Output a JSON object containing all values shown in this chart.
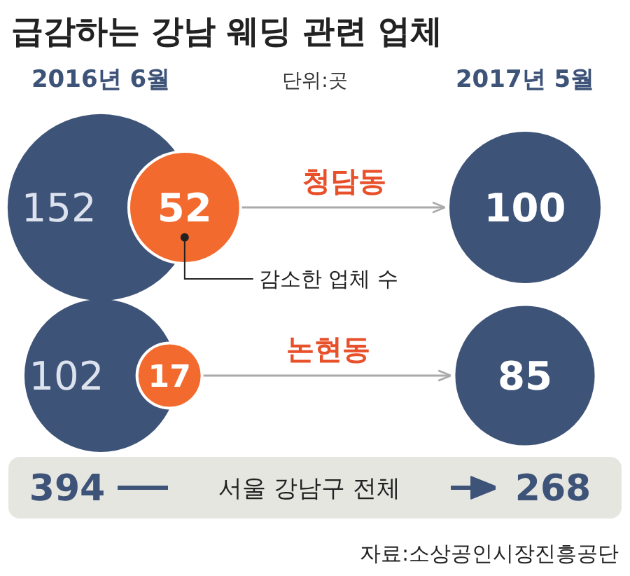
{
  "chart_data": {
    "type": "other",
    "title": "급감하는 강남 웨딩 관련 업체",
    "subtitle": "단위:곳",
    "categories": [
      "청담동",
      "논현동",
      "서울 강남구 전체"
    ],
    "series": [
      {
        "name": "2016년 6월",
        "colors": [
          "#3e5378",
          "#3e5378",
          "#e6e6e1"
        ],
        "values": [
          152,
          102,
          394
        ]
      },
      {
        "name": "2017년 5월",
        "colors": [
          "#3e5378",
          "#3e5378",
          "#e6e6e1"
        ],
        "values": [
          100,
          85,
          268
        ]
      },
      {
        "name": "감소한 업체 수",
        "color": "#f26a2e",
        "values": [
          52,
          17,
          null
        ]
      }
    ],
    "data_labels": true,
    "annotations": [
      "자료:소상공인시장진흥공단"
    ]
  }
}
